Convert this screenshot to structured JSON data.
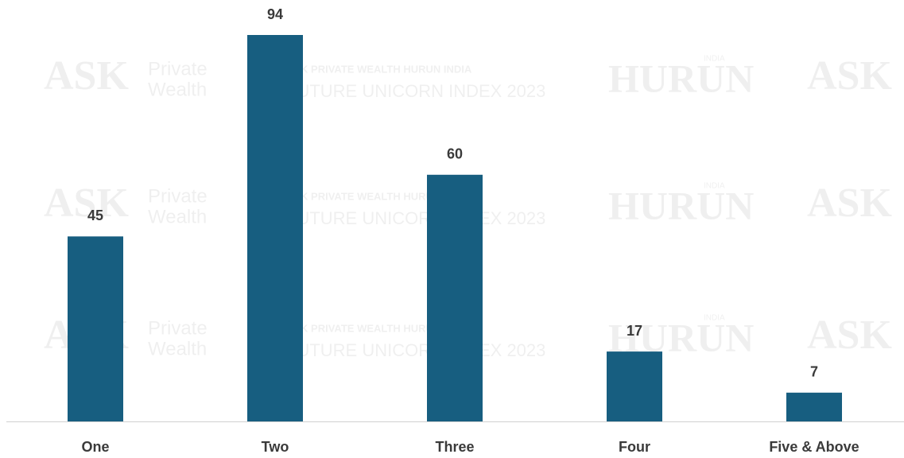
{
  "chart_data": {
    "type": "bar",
    "categories": [
      "One",
      "Two",
      "Three",
      "Four",
      "Five & Above"
    ],
    "values": [
      45,
      94,
      60,
      17,
      7
    ],
    "color": "#175e80"
  },
  "watermark": {
    "brand": "ASK",
    "brand_sub": [
      "Private",
      "Wealth"
    ],
    "index_line1": "ASK PRIVATE WEALTH HURUN INDIA",
    "index_line2": "FUTURE UNICORN INDEX 2023",
    "hurun": "HURUN",
    "hurun_sup": "INDIA"
  }
}
